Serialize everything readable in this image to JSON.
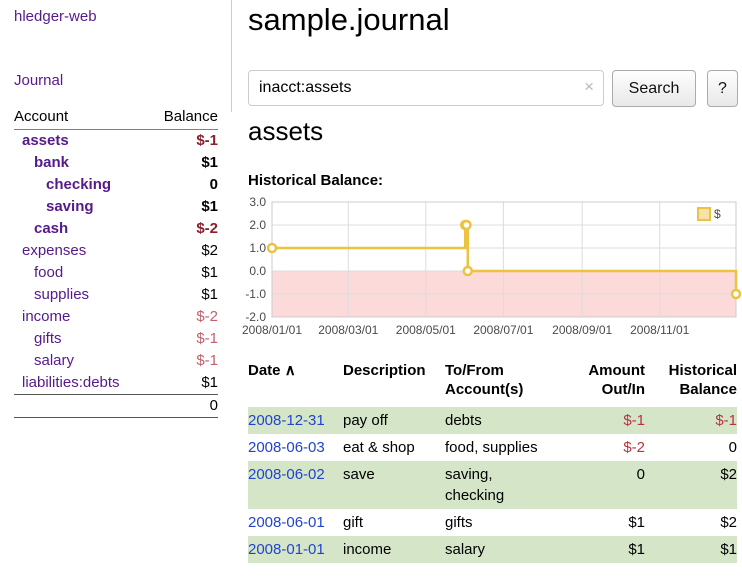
{
  "app": {
    "title": "hledger-web"
  },
  "sidebar": {
    "journal_link": "Journal",
    "accounts_header": {
      "account": "Account",
      "balance": "Balance"
    },
    "accounts": [
      {
        "name": "assets",
        "depth": 0,
        "balance": "$-1",
        "selected": true
      },
      {
        "name": "bank",
        "depth": 1,
        "balance": "$1",
        "selected": true
      },
      {
        "name": "checking",
        "depth": 2,
        "balance": "0",
        "selected": true
      },
      {
        "name": "saving",
        "depth": 2,
        "balance": "$1",
        "selected": true
      },
      {
        "name": "cash",
        "depth": 1,
        "balance": "$-2",
        "selected": true
      },
      {
        "name": "expenses",
        "depth": 0,
        "balance": "$2",
        "selected": false
      },
      {
        "name": "food",
        "depth": 1,
        "balance": "$1",
        "selected": false
      },
      {
        "name": "supplies",
        "depth": 1,
        "balance": "$1",
        "selected": false
      },
      {
        "name": "income",
        "depth": 0,
        "balance": "$-2",
        "selected": false
      },
      {
        "name": "gifts",
        "depth": 1,
        "balance": "$-1",
        "selected": false
      },
      {
        "name": "salary",
        "depth": 1,
        "balance": "$-1",
        "selected": false
      },
      {
        "name": "liabilities:debts",
        "depth": 0,
        "balance": "$1",
        "selected": false
      }
    ],
    "total": "0"
  },
  "header": {
    "title": "sample.journal"
  },
  "search": {
    "value": "inacct:assets",
    "clear_icon": "×",
    "button": "Search",
    "help_button": "?"
  },
  "main": {
    "account_title": "assets",
    "chart_label": "Historical Balance:"
  },
  "chart_data": {
    "type": "line",
    "title": "Historical Balance:",
    "step": true,
    "xlabel": "",
    "ylabel": "",
    "x_range": [
      0,
      365
    ],
    "y_range": [
      -2,
      3
    ],
    "grid": true,
    "legend_position": "top-right",
    "series": [
      {
        "name": "$",
        "color": "#edc240",
        "points": [
          {
            "date": "2008-01-01",
            "day": 0,
            "value": 1
          },
          {
            "date": "2008-06-01",
            "day": 152,
            "value": 2
          },
          {
            "date": "2008-06-02",
            "day": 153,
            "value": 2
          },
          {
            "date": "2008-06-03",
            "day": 154,
            "value": 0
          },
          {
            "date": "2008-12-31",
            "day": 365,
            "value": -1
          }
        ]
      }
    ],
    "x_ticks": [
      {
        "label": "2008/01/01",
        "day": 0
      },
      {
        "label": "2008/03/01",
        "day": 60
      },
      {
        "label": "2008/05/01",
        "day": 121
      },
      {
        "label": "2008/07/01",
        "day": 182
      },
      {
        "label": "2008/09/01",
        "day": 244
      },
      {
        "label": "2008/11/01",
        "day": 305
      }
    ],
    "y_ticks": [
      "3.0",
      "2.0",
      "1.0",
      "0.0",
      "-1.0",
      "-2.0"
    ],
    "negative_region_color": "#fcdada"
  },
  "register": {
    "headers": [
      "Date",
      "Description",
      "To/From Account(s)",
      "Amount Out/In",
      "Historical Balance"
    ],
    "sort_icon": "∧",
    "rows": [
      {
        "date": "2008-12-31",
        "description": "pay off",
        "accounts": "debts",
        "amount": "$-1",
        "balance": "$-1"
      },
      {
        "date": "2008-06-03",
        "description": "eat & shop",
        "accounts": "food, supplies",
        "amount": "$-2",
        "balance": "0"
      },
      {
        "date": "2008-06-02",
        "description": "save",
        "accounts": "saving, checking",
        "amount": "0",
        "balance": "$2"
      },
      {
        "date": "2008-06-01",
        "description": "gift",
        "accounts": "gifts",
        "amount": "$1",
        "balance": "$2"
      },
      {
        "date": "2008-01-01",
        "description": "income",
        "accounts": "salary",
        "amount": "$1",
        "balance": "$1"
      }
    ]
  },
  "colors": {
    "link_purple": "#551a8b",
    "date_link_blue": "#2244cc",
    "negative_strong": "#8b1f2f",
    "negative_soft": "#c2606e",
    "negative": "#b63441",
    "row_shade_green": "#d5e6c8",
    "series_gold": "#edc240",
    "negative_region_pink": "#fcdada"
  }
}
